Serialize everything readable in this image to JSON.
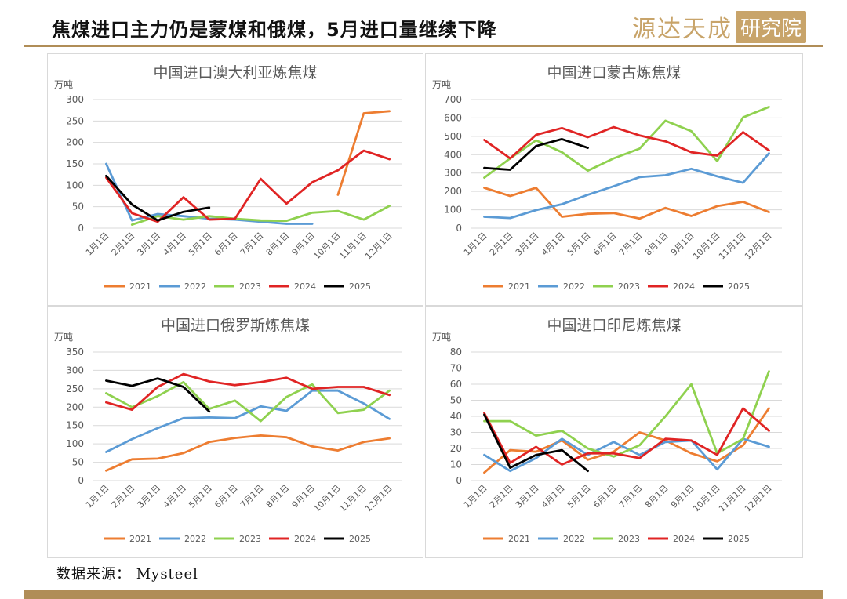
{
  "header": {
    "title": "焦煤进口主力仍是蒙煤和俄煤，5月进口量继续下降",
    "brand_name": "源达天成",
    "brand_box": "研究院"
  },
  "footer": {
    "source": "数据来源：  Mysteel"
  },
  "colors": {
    "2021": "#ED7D31",
    "2022": "#5B9BD5",
    "2023": "#8FD14F",
    "2024": "#E02424",
    "2025": "#000000",
    "accent": "#B08D57"
  },
  "chart_data": [
    {
      "type": "line",
      "title": "中国进口澳大利亚炼焦煤",
      "unit_label": "万吨",
      "ylim": [
        0,
        300
      ],
      "yticks": [
        0,
        50,
        100,
        150,
        200,
        250,
        300
      ],
      "categories": [
        "1月1日",
        "2月1日",
        "3月1日",
        "4月1日",
        "5月1日",
        "6月1日",
        "7月1日",
        "8月1日",
        "9月1日",
        "10月1日",
        "11月1日",
        "12月1日"
      ],
      "legend_position": "bottom",
      "grid": true,
      "series": [
        {
          "name": "2021",
          "values": [
            null,
            null,
            null,
            null,
            null,
            null,
            null,
            null,
            null,
            78,
            268,
            273
          ]
        },
        {
          "name": "2022",
          "values": [
            150,
            18,
            33,
            28,
            22,
            20,
            15,
            10,
            10,
            null,
            null,
            null
          ]
        },
        {
          "name": "2023",
          "values": [
            null,
            8,
            28,
            20,
            28,
            22,
            18,
            17,
            36,
            40,
            20,
            52
          ]
        },
        {
          "name": "2024",
          "values": [
            118,
            35,
            15,
            72,
            20,
            22,
            115,
            57,
            107,
            135,
            181,
            161
          ]
        },
        {
          "name": "2025",
          "values": [
            122,
            55,
            18,
            38,
            48,
            null,
            null,
            null,
            null,
            null,
            null,
            null
          ]
        }
      ]
    },
    {
      "type": "line",
      "title": "中国进口蒙古炼焦煤",
      "unit_label": "万吨",
      "ylim": [
        0,
        700
      ],
      "yticks": [
        0,
        100,
        200,
        300,
        400,
        500,
        600,
        700
      ],
      "categories": [
        "1月1日",
        "2月1日",
        "3月1日",
        "4月1日",
        "5月1日",
        "6月1日",
        "7月1日",
        "8月1日",
        "9月1日",
        "10月1日",
        "11月1日",
        "12月1日"
      ],
      "legend_position": "bottom",
      "grid": true,
      "series": [
        {
          "name": "2021",
          "values": [
            220,
            175,
            220,
            62,
            78,
            82,
            52,
            110,
            66,
            120,
            143,
            87
          ]
        },
        {
          "name": "2022",
          "values": [
            62,
            55,
            98,
            130,
            182,
            228,
            278,
            288,
            323,
            282,
            247,
            407
          ]
        },
        {
          "name": "2023",
          "values": [
            275,
            380,
            478,
            413,
            313,
            380,
            433,
            585,
            528,
            365,
            603,
            660
          ]
        },
        {
          "name": "2024",
          "values": [
            480,
            380,
            508,
            545,
            495,
            550,
            505,
            473,
            413,
            395,
            523,
            423
          ]
        },
        {
          "name": "2025",
          "values": [
            328,
            318,
            447,
            485,
            437,
            null,
            null,
            null,
            null,
            null,
            null,
            null
          ]
        }
      ]
    },
    {
      "type": "line",
      "title": "中国进口俄罗斯炼焦煤",
      "unit_label": "万吨",
      "ylim": [
        0,
        350
      ],
      "yticks": [
        0,
        50,
        100,
        150,
        200,
        250,
        300,
        350
      ],
      "categories": [
        "1月1日",
        "2月1日",
        "3月1日",
        "4月1日",
        "5月1日",
        "6月1日",
        "7月1日",
        "8月1日",
        "9月1日",
        "10月1日",
        "11月1日",
        "12月1日"
      ],
      "legend_position": "bottom",
      "grid": true,
      "series": [
        {
          "name": "2021",
          "values": [
            27,
            58,
            60,
            75,
            105,
            116,
            123,
            118,
            93,
            82,
            105,
            115
          ]
        },
        {
          "name": "2022",
          "values": [
            78,
            113,
            143,
            170,
            172,
            170,
            202,
            190,
            245,
            245,
            210,
            168
          ]
        },
        {
          "name": "2023",
          "values": [
            238,
            200,
            230,
            268,
            195,
            218,
            162,
            228,
            262,
            184,
            193,
            245
          ]
        },
        {
          "name": "2024",
          "values": [
            213,
            193,
            255,
            290,
            270,
            260,
            268,
            280,
            250,
            255,
            255,
            233
          ]
        },
        {
          "name": "2025",
          "values": [
            272,
            258,
            278,
            255,
            188,
            null,
            null,
            null,
            null,
            null,
            null,
            null
          ]
        }
      ]
    },
    {
      "type": "line",
      "title": "中国进口印尼炼焦煤",
      "unit_label": "万吨",
      "ylim": [
        0,
        80
      ],
      "yticks": [
        0,
        10,
        20,
        30,
        40,
        50,
        60,
        70,
        80
      ],
      "categories": [
        "1月1日",
        "2月1日",
        "3月1日",
        "4月1日",
        "5月1日",
        "6月1日",
        "7月1日",
        "8月1日",
        "9月1日",
        "10月1日",
        "11月1日",
        "12月1日"
      ],
      "legend_position": "bottom",
      "grid": true,
      "series": [
        {
          "name": "2021",
          "values": [
            5,
            19,
            18,
            25,
            13,
            18,
            30,
            25,
            17,
            12,
            22,
            45
          ]
        },
        {
          "name": "2022",
          "values": [
            16,
            6,
            14,
            26,
            16,
            24,
            16,
            24,
            25,
            7,
            26,
            21
          ]
        },
        {
          "name": "2023",
          "values": [
            37,
            37,
            28,
            31,
            20,
            15,
            22,
            40,
            60,
            17,
            26,
            68
          ]
        },
        {
          "name": "2024",
          "values": [
            42,
            11,
            21,
            10,
            17,
            17,
            14,
            26,
            25,
            16,
            45,
            31
          ]
        },
        {
          "name": "2025",
          "values": [
            41,
            8,
            16,
            19,
            6,
            null,
            null,
            null,
            null,
            null,
            null,
            null
          ]
        }
      ]
    }
  ]
}
